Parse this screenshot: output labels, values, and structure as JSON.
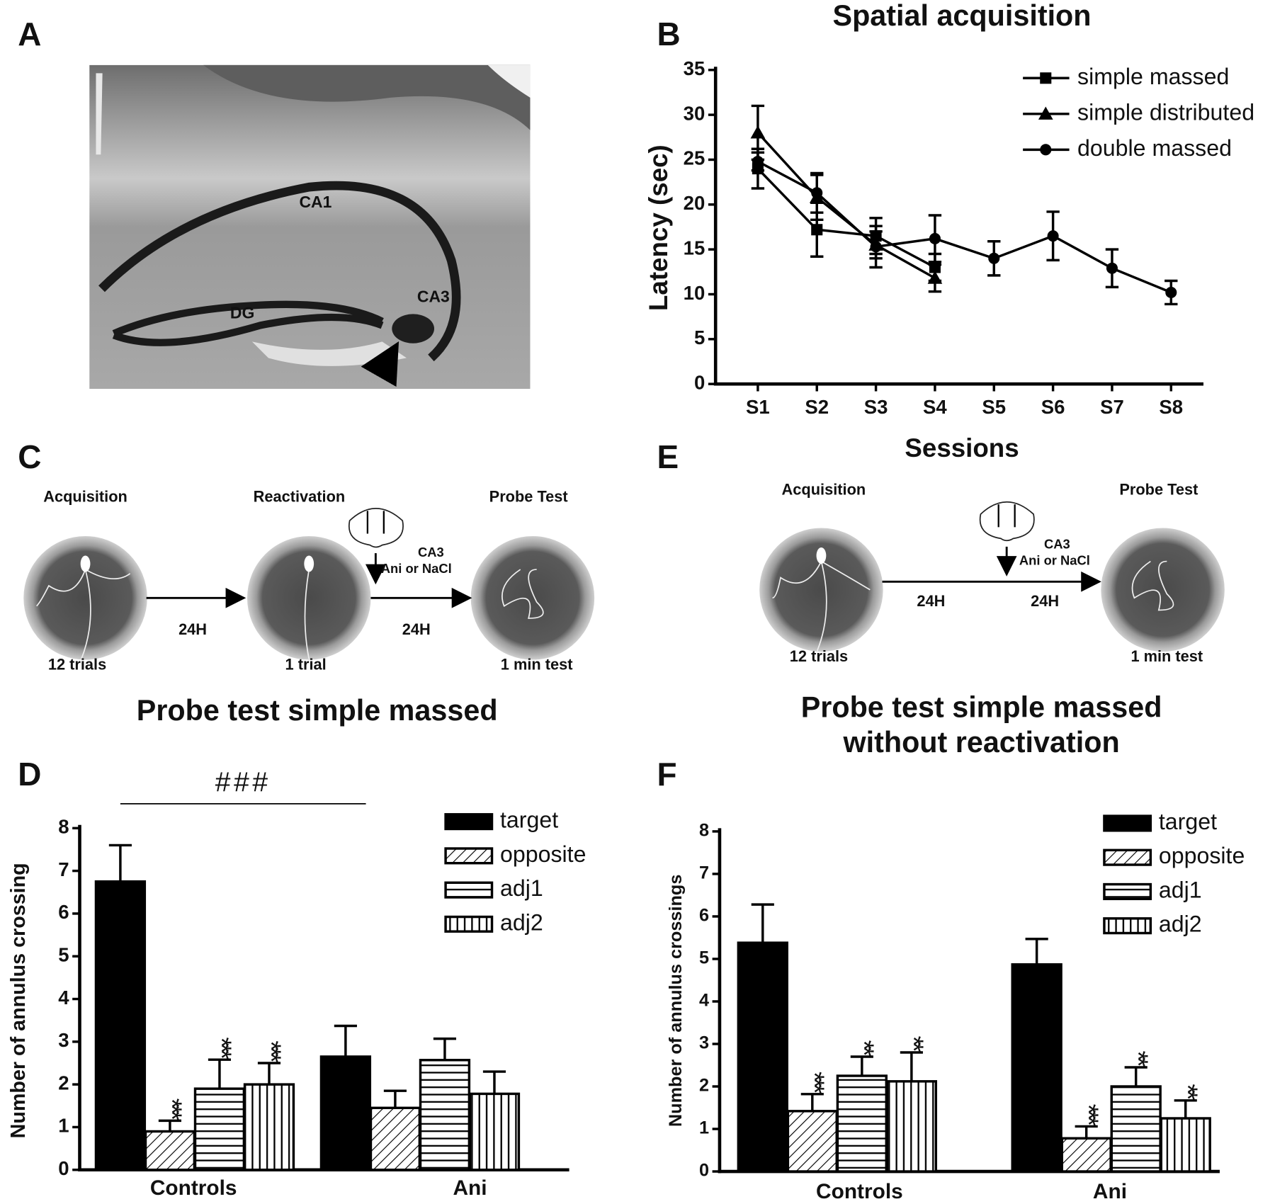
{
  "panel_labels": [
    "A",
    "B",
    "C",
    "D",
    "E",
    "F"
  ],
  "micrograph": {
    "labels": [
      "CA1",
      "DG",
      "CA3"
    ]
  },
  "diagram_c": {
    "stages": [
      "Acquisition",
      "Reactivation",
      "Probe Test"
    ],
    "trials": [
      "12 trials",
      "1 trial",
      "1 min test"
    ],
    "intervals": [
      "24H",
      "24H"
    ],
    "injection": [
      "CA3",
      "Ani or NaCl"
    ]
  },
  "diagram_e": {
    "stages": [
      "Acquisition",
      "Probe Test"
    ],
    "trials": [
      "12 trials",
      "1 min test"
    ],
    "intervals": [
      "24H",
      "24H"
    ],
    "injection": [
      "CA3",
      "Ani or NaCl"
    ]
  },
  "chart_data": [
    {
      "type": "line",
      "title": "Spatial acquisition",
      "x_label": "Sessions",
      "y_label": "Latency (sec)",
      "categories": [
        "S1",
        "S2",
        "S3",
        "S4",
        "S5",
        "S6",
        "S7",
        "S8"
      ],
      "ylim": [
        0,
        35
      ],
      "yticks": [
        0,
        5,
        10,
        15,
        20,
        25,
        30,
        35
      ],
      "legend": "upper right",
      "series": [
        {
          "name": "simple massed",
          "color": "#000000",
          "marker": "square",
          "values": [
            24,
            17.2,
            16.5,
            13,
            null,
            null,
            null,
            null
          ],
          "errors": [
            2.2,
            3,
            2,
            1.5,
            null,
            null,
            null,
            null
          ]
        },
        {
          "name": "simple distributed",
          "color": "#000000",
          "marker": "triangle",
          "values": [
            28,
            20.8,
            15.5,
            11.8,
            null,
            null,
            null,
            null
          ],
          "errors": [
            3,
            2.5,
            1.5,
            1.5,
            null,
            null,
            null,
            null
          ]
        },
        {
          "name": "double massed",
          "color": "#000000",
          "marker": "circle",
          "values": [
            24.8,
            21.3,
            15.3,
            16.2,
            14,
            16.5,
            12.9,
            10.2
          ],
          "errors": [
            1,
            2.2,
            2.3,
            2.6,
            1.9,
            2.7,
            2.1,
            1.3
          ]
        }
      ]
    },
    {
      "type": "bar",
      "title": [
        "Probe test simple massed"
      ],
      "y_label": "Number of annulus crossing",
      "categories": [
        "Controls",
        "Ani"
      ],
      "ylim": [
        0,
        8
      ],
      "yticks": [
        0,
        1,
        2,
        3,
        4,
        5,
        6,
        7,
        8
      ],
      "legend": "upper right",
      "bracket_label": "###",
      "series": [
        {
          "name": "target",
          "color": "#000000",
          "pattern": "solid",
          "values": [
            6.75,
            2.65
          ],
          "errors": [
            0.85,
            0.72
          ],
          "annotations": [
            null,
            null
          ]
        },
        {
          "name": "opposite",
          "color": "#000000",
          "pattern": "diagonal",
          "values": [
            0.9,
            1.45
          ],
          "errors": [
            0.25,
            0.4
          ],
          "annotations": [
            "***",
            null
          ]
        },
        {
          "name": "adj1",
          "color": "#000000",
          "pattern": "horizontal",
          "values": [
            1.9,
            2.57
          ],
          "errors": [
            0.68,
            0.5
          ],
          "annotations": [
            "***",
            null
          ]
        },
        {
          "name": "adj2",
          "color": "#000000",
          "pattern": "vertical",
          "values": [
            2.0,
            1.78
          ],
          "errors": [
            0.5,
            0.52
          ],
          "annotations": [
            "***",
            null
          ]
        }
      ]
    },
    {
      "type": "bar",
      "title": [
        "Probe test simple massed",
        "without reactivation"
      ],
      "y_label": "Number of annulus crossings",
      "categories": [
        "Controls",
        "Ani"
      ],
      "ylim": [
        0,
        8
      ],
      "yticks": [
        0,
        1,
        2,
        3,
        4,
        5,
        6,
        7,
        8
      ],
      "legend": "upper right",
      "series": [
        {
          "name": "target",
          "color": "#000000",
          "pattern": "solid",
          "values": [
            5.38,
            4.87
          ],
          "errors": [
            0.9,
            0.6
          ],
          "annotations": [
            null,
            null
          ]
        },
        {
          "name": "opposite",
          "color": "#000000",
          "pattern": "diagonal",
          "values": [
            1.42,
            0.78
          ],
          "errors": [
            0.4,
            0.28
          ],
          "annotations": [
            "***",
            "***"
          ]
        },
        {
          "name": "adj1",
          "color": "#000000",
          "pattern": "horizontal",
          "values": [
            2.25,
            2.0
          ],
          "errors": [
            0.45,
            0.45
          ],
          "annotations": [
            "**",
            "**"
          ]
        },
        {
          "name": "adj2",
          "color": "#000000",
          "pattern": "vertical",
          "values": [
            2.12,
            1.25
          ],
          "errors": [
            0.68,
            0.42
          ],
          "annotations": [
            "**",
            "**"
          ]
        }
      ]
    }
  ]
}
